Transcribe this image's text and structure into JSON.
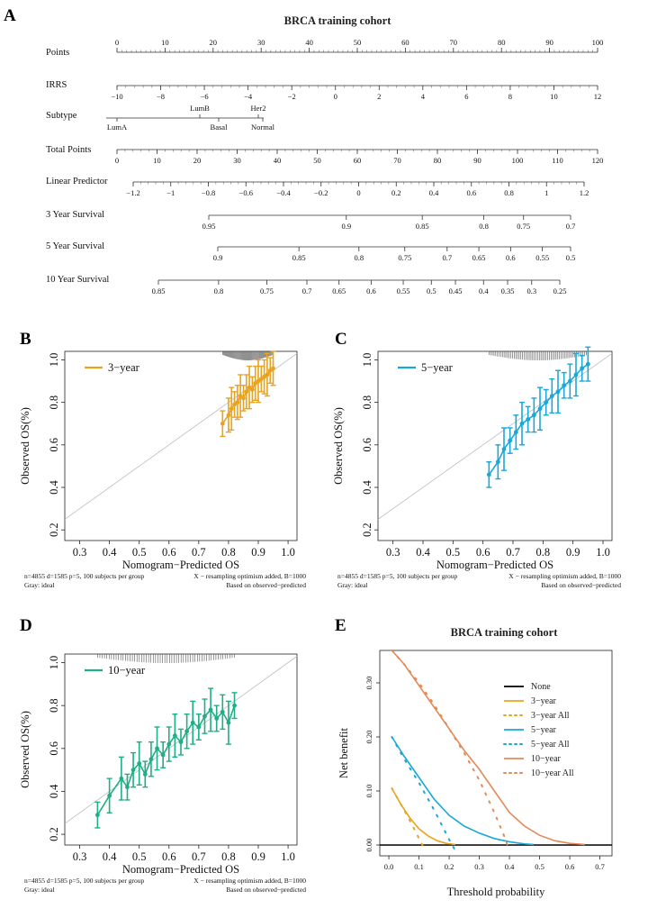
{
  "colors": {
    "three_year": "#E8A41E",
    "five_year": "#1AA8D8",
    "ten_year": "#1FAE86",
    "ideal": "#bdbdbd",
    "rug": "#555555",
    "none": "#000000",
    "ten_year_dca": "#E48A59"
  },
  "nomogram": {
    "panel_letter": "A",
    "title": "BRCA training cohort",
    "rows": [
      {
        "label": "Points",
        "major": [
          0,
          10,
          20,
          30,
          40,
          50,
          60,
          70,
          80,
          90,
          100
        ],
        "labels": [
          "0",
          "10",
          "20",
          "30",
          "40",
          "50",
          "60",
          "70",
          "80",
          "90",
          "100"
        ],
        "minor_step": 1,
        "label_above": true
      },
      {
        "label": "IRRS",
        "major": [
          -10,
          -8,
          -6,
          -4,
          -2,
          0,
          2,
          4,
          6,
          8,
          10,
          12
        ],
        "labels": [
          "−10",
          "−8",
          "−6",
          "−4",
          "−2",
          "0",
          "2",
          "4",
          "6",
          "8",
          "10",
          "12"
        ],
        "label_above": false
      },
      {
        "label": "Subtype"
      },
      {
        "label": "Total Points",
        "major": [
          0,
          10,
          20,
          30,
          40,
          50,
          60,
          70,
          80,
          90,
          100,
          110,
          120
        ],
        "labels": [
          "0",
          "10",
          "20",
          "30",
          "40",
          "50",
          "60",
          "70",
          "80",
          "90",
          "100",
          "110",
          "120"
        ],
        "label_above": false
      },
      {
        "label": "Linear Predictor",
        "major": [
          -1.2,
          -1,
          -0.8,
          -0.6,
          -0.4,
          -0.2,
          0,
          0.2,
          0.4,
          0.6,
          0.8,
          1,
          1.2
        ],
        "labels": [
          "−1.2",
          "−1",
          "−0.8",
          "−0.6",
          "−0.4",
          "−0.2",
          "0",
          "0.2",
          "0.4",
          "0.6",
          "0.8",
          "1",
          "1.2"
        ],
        "label_above": false
      },
      {
        "label": "3 Year Survival",
        "labels": [
          "0.95",
          "0.9",
          "0.85",
          "0.8",
          "0.75",
          "0.7"
        ],
        "label_above": false
      },
      {
        "label": "5 Year Survival",
        "labels": [
          "0.9",
          "0.85",
          "0.8",
          "0.75",
          "0.7",
          "0.65",
          "0.6",
          "0.55",
          "0.5"
        ],
        "label_above": false
      },
      {
        "label": "10 Year Survival",
        "labels": [
          "0.85",
          "0.8",
          "0.75",
          "0.7",
          "0.65",
          "0.6",
          "0.55",
          "0.5",
          "0.45",
          "0.4",
          "0.35",
          "0.3",
          "0.25"
        ],
        "label_above": false
      }
    ],
    "subtype_levels": {
      "above": [
        "LumB",
        "Her2"
      ],
      "below": [
        "LumA",
        "Basal",
        "Normal"
      ]
    }
  },
  "calibration": [
    {
      "panel_letter": "B",
      "key": "three_year",
      "legend": "3−year",
      "xlabel": "Nomogram−Predicted OS",
      "ylabel": "Observed OS(%)",
      "xticks": [
        "0.3",
        "0.4",
        "0.5",
        "0.6",
        "0.7",
        "0.8",
        "0.9",
        "1.0"
      ],
      "yticks": [
        "0.2",
        "0.4",
        "0.6",
        "0.8",
        "1.0"
      ],
      "footer_left": "n=4855 d=1585 p=5, 100 subjects per group",
      "footer_right": "X − resampling optimism added, B=1000",
      "footer_left2": "Gray: ideal",
      "footer_right2": "Based on observed−predicted",
      "points": [
        [
          0.78,
          0.7
        ],
        [
          0.8,
          0.74
        ],
        [
          0.81,
          0.77
        ],
        [
          0.82,
          0.79
        ],
        [
          0.83,
          0.8
        ],
        [
          0.84,
          0.83
        ],
        [
          0.85,
          0.82
        ],
        [
          0.86,
          0.85
        ],
        [
          0.87,
          0.87
        ],
        [
          0.88,
          0.86
        ],
        [
          0.89,
          0.89
        ],
        [
          0.9,
          0.9
        ],
        [
          0.91,
          0.91
        ],
        [
          0.92,
          0.92
        ],
        [
          0.93,
          0.93
        ],
        [
          0.94,
          0.95
        ],
        [
          0.95,
          0.96
        ]
      ]
    },
    {
      "panel_letter": "C",
      "key": "five_year",
      "legend": "5−year",
      "xlabel": "Nomogram−Predicted OS",
      "ylabel": "Observed OS(%)",
      "xticks": [
        "0.3",
        "0.4",
        "0.5",
        "0.6",
        "0.7",
        "0.8",
        "0.9",
        "1.0"
      ],
      "yticks": [
        "0.2",
        "0.4",
        "0.6",
        "0.8",
        "1.0"
      ],
      "footer_left": "n=4855 d=1585 p=5, 100 subjects per group",
      "footer_right": "X − resampling optimism added, B=1000",
      "footer_left2": "Gray: ideal",
      "footer_right2": "Based on observed−predicted",
      "points": [
        [
          0.62,
          0.46
        ],
        [
          0.65,
          0.52
        ],
        [
          0.67,
          0.58
        ],
        [
          0.69,
          0.62
        ],
        [
          0.71,
          0.66
        ],
        [
          0.73,
          0.7
        ],
        [
          0.75,
          0.72
        ],
        [
          0.77,
          0.74
        ],
        [
          0.79,
          0.77
        ],
        [
          0.81,
          0.8
        ],
        [
          0.83,
          0.83
        ],
        [
          0.85,
          0.85
        ],
        [
          0.87,
          0.88
        ],
        [
          0.89,
          0.9
        ],
        [
          0.91,
          0.93
        ],
        [
          0.93,
          0.96
        ],
        [
          0.95,
          0.98
        ]
      ]
    },
    {
      "panel_letter": "D",
      "key": "ten_year",
      "legend": "10−year",
      "xlabel": "Nomogram−Predicted OS",
      "ylabel": "Observed OS(%)",
      "xticks": [
        "0.3",
        "0.4",
        "0.5",
        "0.6",
        "0.7",
        "0.8",
        "0.9",
        "1.0"
      ],
      "yticks": [
        "0.2",
        "0.4",
        "0.6",
        "0.8",
        "1.0"
      ],
      "footer_left": "n=4855 d=1585 p=5, 100 subjects per group",
      "footer_right": "X − resampling optimism added, B=1000",
      "footer_left2": "Gray: ideal",
      "footer_right2": "Based on observed−predicted",
      "points": [
        [
          0.36,
          0.29
        ],
        [
          0.4,
          0.38
        ],
        [
          0.44,
          0.46
        ],
        [
          0.46,
          0.42
        ],
        [
          0.48,
          0.5
        ],
        [
          0.5,
          0.53
        ],
        [
          0.52,
          0.48
        ],
        [
          0.54,
          0.55
        ],
        [
          0.56,
          0.6
        ],
        [
          0.58,
          0.57
        ],
        [
          0.6,
          0.62
        ],
        [
          0.62,
          0.66
        ],
        [
          0.64,
          0.63
        ],
        [
          0.66,
          0.68
        ],
        [
          0.68,
          0.72
        ],
        [
          0.7,
          0.7
        ],
        [
          0.72,
          0.75
        ],
        [
          0.74,
          0.78
        ],
        [
          0.76,
          0.74
        ],
        [
          0.78,
          0.77
        ],
        [
          0.8,
          0.72
        ],
        [
          0.82,
          0.8
        ]
      ]
    }
  ],
  "dca": {
    "panel_letter": "E",
    "title": "BRCA training cohort",
    "xlabel": "Threshold probability",
    "ylabel": "Net benefit",
    "xticks": [
      "0.0",
      "0.1",
      "0.2",
      "0.3",
      "0.4",
      "0.5",
      "0.6",
      "0.7"
    ],
    "yticks": [
      "0.00",
      "0.10",
      "0.20",
      "0.30"
    ],
    "xlim": [
      -0.03,
      0.74
    ],
    "ylim": [
      -0.02,
      0.36
    ],
    "legend": [
      "None",
      "3−year",
      "3−year All",
      "5−year",
      "5−year All",
      "10−year",
      "10−year All"
    ],
    "series": [
      {
        "name": "None",
        "color_key": "none",
        "dash": false,
        "x": [
          -0.03,
          0.74
        ],
        "y": [
          0,
          0
        ]
      },
      {
        "name": "3−year",
        "color_key": "three_year",
        "dash": false,
        "x": [
          0.01,
          0.04,
          0.07,
          0.1,
          0.13,
          0.16,
          0.19,
          0.22
        ],
        "y": [
          0.105,
          0.075,
          0.05,
          0.03,
          0.017,
          0.008,
          0.003,
          0.001
        ]
      },
      {
        "name": "3−year All",
        "color_key": "three_year",
        "dash": true,
        "x": [
          0.01,
          0.04,
          0.07,
          0.1,
          0.12
        ],
        "y": [
          0.105,
          0.075,
          0.045,
          0.012,
          -0.01
        ]
      },
      {
        "name": "5−year",
        "color_key": "five_year",
        "dash": false,
        "x": [
          0.01,
          0.05,
          0.1,
          0.15,
          0.2,
          0.25,
          0.3,
          0.35,
          0.4,
          0.45,
          0.48
        ],
        "y": [
          0.2,
          0.165,
          0.125,
          0.085,
          0.055,
          0.035,
          0.022,
          0.012,
          0.006,
          0.002,
          0.001
        ]
      },
      {
        "name": "5−year All",
        "color_key": "five_year",
        "dash": true,
        "x": [
          0.01,
          0.05,
          0.1,
          0.15,
          0.2,
          0.22
        ],
        "y": [
          0.2,
          0.16,
          0.115,
          0.065,
          0.01,
          -0.01
        ]
      },
      {
        "name": "10−year",
        "color_key": "ten_year_dca",
        "dash": false,
        "x": [
          0.01,
          0.05,
          0.1,
          0.15,
          0.2,
          0.25,
          0.3,
          0.35,
          0.4,
          0.45,
          0.5,
          0.55,
          0.6,
          0.65
        ],
        "y": [
          0.36,
          0.335,
          0.295,
          0.255,
          0.215,
          0.175,
          0.14,
          0.1,
          0.06,
          0.035,
          0.018,
          0.008,
          0.003,
          0.001
        ]
      },
      {
        "name": "10−year All",
        "color_key": "ten_year_dca",
        "dash": true,
        "x": [
          0.01,
          0.05,
          0.1,
          0.15,
          0.2,
          0.25,
          0.3,
          0.35,
          0.38,
          0.4
        ],
        "y": [
          0.36,
          0.335,
          0.3,
          0.26,
          0.215,
          0.17,
          0.12,
          0.06,
          0.02,
          -0.01
        ]
      }
    ]
  }
}
